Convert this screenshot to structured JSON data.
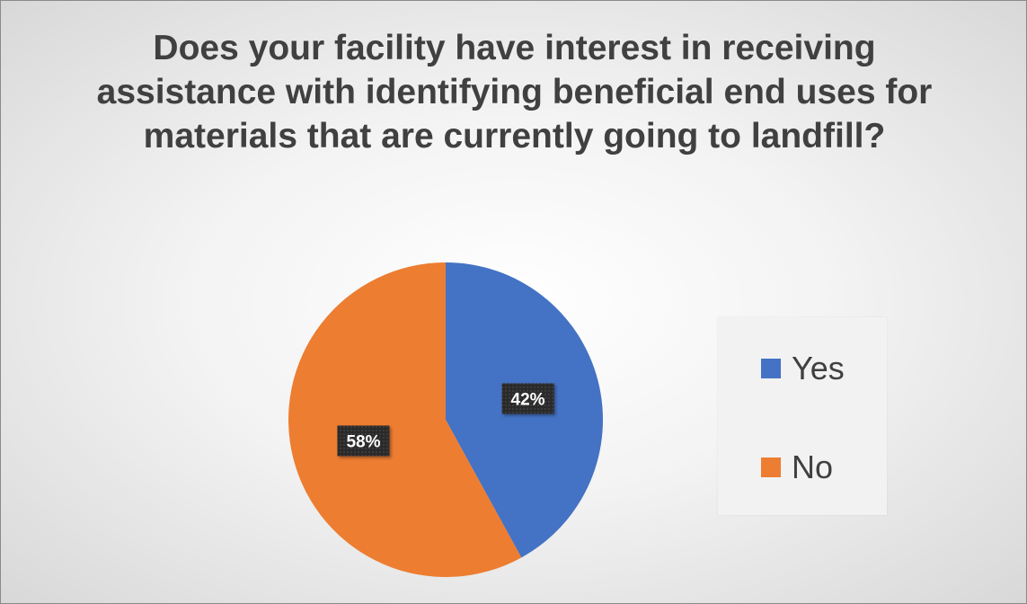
{
  "chart_data": {
    "type": "pie",
    "title": "Does your facility have interest in receiving assistance with identifying beneficial end uses for materials that are currently going to landfill?",
    "categories": [
      "Yes",
      "No"
    ],
    "values": [
      42,
      58
    ],
    "data_labels": [
      "42%",
      "58%"
    ],
    "colors": [
      "#4472C4",
      "#ED7D31"
    ],
    "legend": {
      "position": "right",
      "entries": [
        "Yes",
        "No"
      ]
    },
    "grid": false
  }
}
